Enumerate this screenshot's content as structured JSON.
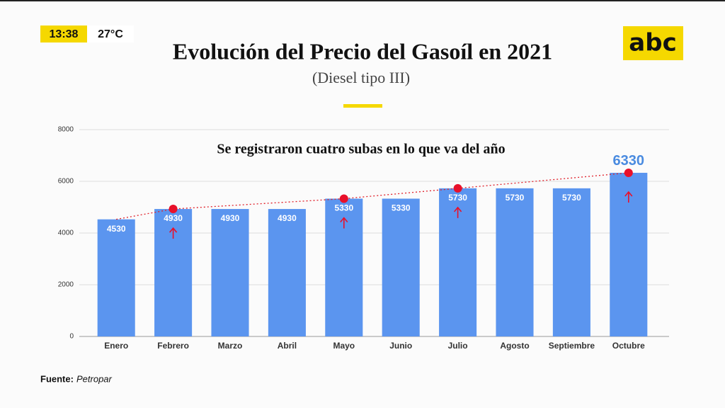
{
  "chart_data": {
    "type": "bar",
    "title": "Evolución del Precio del Gasoíl en 2021",
    "subtitle": "(Diesel tipo III)",
    "annotation": "Se registraron cuatro subas en lo que va del año",
    "categories": [
      "Enero",
      "Febrero",
      "Marzo",
      "Abril",
      "Mayo",
      "Junio",
      "Julio",
      "Agosto",
      "Septiembre",
      "Octubre"
    ],
    "values": [
      4530,
      4930,
      4930,
      4930,
      5330,
      5330,
      5730,
      5730,
      5730,
      6330
    ],
    "color": "#5b95ef",
    "ylim": [
      0,
      8000
    ],
    "yticks": [
      0,
      2000,
      4000,
      6000,
      8000
    ],
    "grid": true,
    "source_label": "Fuente:",
    "source": "Petropar"
  },
  "overlay": {
    "time": "13:38",
    "temperature": "27°C",
    "logo": "abc"
  }
}
